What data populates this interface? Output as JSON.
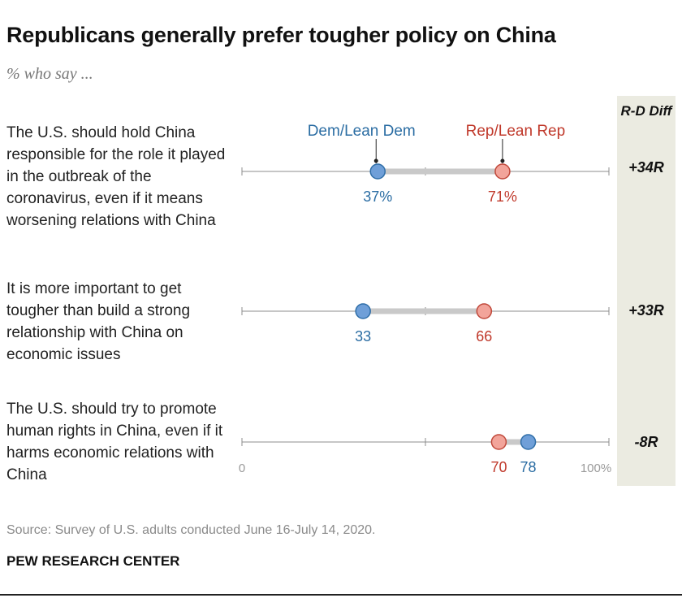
{
  "header": {
    "title": "Republicans generally prefer tougher policy on China",
    "subtitle": "% who say ..."
  },
  "diff_header": "R-D Diff",
  "colors": {
    "dem": "#6f9fd8",
    "dem_stroke": "#2f6ea8",
    "dem_text": "#2b6da3",
    "rep": "#f2a49a",
    "rep_stroke": "#c0483a",
    "rep_text": "#c0392b",
    "connector": "#c9c9c9",
    "axis": "#8c8c8c",
    "diff_bg": "#ebebe1"
  },
  "chart_data": {
    "type": "dot",
    "xlim": [
      0,
      100
    ],
    "x_ticks": [
      0,
      50,
      100
    ],
    "x_tick_labels": [
      "0",
      "",
      "100%"
    ],
    "legend": [
      "Dem/Lean Dem",
      "Rep/Lean Rep"
    ],
    "series": [
      {
        "name": "Dem/Lean Dem",
        "values": [
          37,
          33,
          78
        ],
        "labels": [
          "37%",
          "33",
          "78"
        ]
      },
      {
        "name": "Rep/Lean Rep",
        "values": [
          71,
          66,
          70
        ],
        "labels": [
          "71%",
          "66",
          "70"
        ]
      }
    ],
    "categories": [
      "The U.S. should hold China responsible for the role it played in the outbreak of the coronavirus, even if it means worsening relations with China",
      "It is more important to get tougher than build a strong relationship with China on economic issues",
      "The U.S. should try to promote human rights in China, even if it harms economic relations with China"
    ],
    "diffs": [
      "+34R",
      "+33R",
      "-8R"
    ]
  },
  "footer": {
    "source": "Source: Survey of U.S. adults conducted June 16-July 14, 2020.",
    "brand": "PEW RESEARCH CENTER"
  }
}
